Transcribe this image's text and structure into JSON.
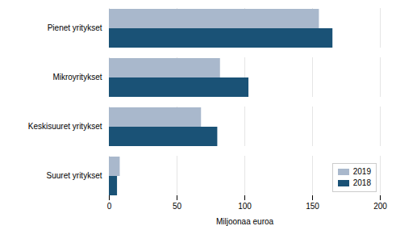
{
  "chart_data": {
    "type": "bar",
    "orientation": "horizontal",
    "categories": [
      "Pienet yritykset",
      "Mikroyritykset",
      "Keskisuuret yritykset",
      "Suuret yritykset"
    ],
    "series": [
      {
        "name": "2019",
        "color": "#a9b8cc",
        "values": [
          155,
          82,
          68,
          8
        ]
      },
      {
        "name": "2018",
        "color": "#1a5276",
        "values": [
          165,
          103,
          80,
          6
        ]
      }
    ],
    "xlabel": "Miljoonaa euroa",
    "xlim": [
      0,
      200
    ],
    "xticks": [
      0,
      50,
      100,
      150,
      200
    ],
    "grid": true,
    "legend": "lower right"
  }
}
